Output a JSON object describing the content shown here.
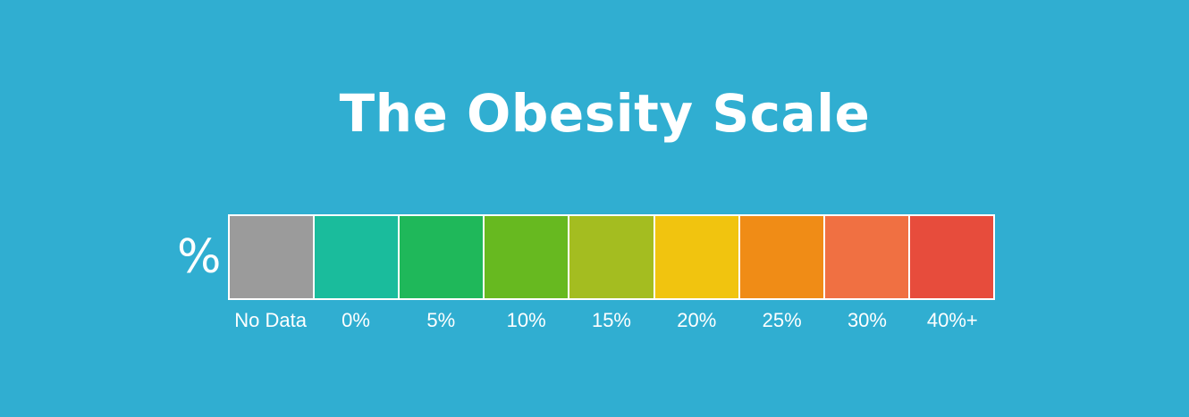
{
  "title": "The Obesity Scale",
  "unit_symbol": "%",
  "legend": {
    "items": [
      {
        "label": "No Data",
        "color": "#9b9b9b"
      },
      {
        "label": "0%",
        "color": "#1abc9c"
      },
      {
        "label": "5%",
        "color": "#1fb85a"
      },
      {
        "label": "10%",
        "color": "#67b920"
      },
      {
        "label": "15%",
        "color": "#a4bd20"
      },
      {
        "label": "20%",
        "color": "#f1c40f"
      },
      {
        "label": "25%",
        "color": "#f08c16"
      },
      {
        "label": "30%",
        "color": "#f07042"
      },
      {
        "label": "40%+",
        "color": "#e74c3c"
      }
    ]
  }
}
